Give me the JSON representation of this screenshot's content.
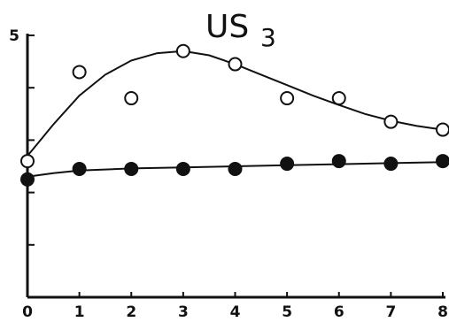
{
  "chart_data": {
    "type": "scatter",
    "title": "US",
    "title_subscript": "3",
    "x": [
      0,
      1,
      2,
      3,
      4,
      5,
      6,
      7,
      8
    ],
    "x_tick_labels": [
      "0",
      "1",
      "2",
      "3",
      "4",
      "5",
      "6",
      "7",
      "8"
    ],
    "xlim": [
      0,
      8
    ],
    "ylim": [
      0,
      5
    ],
    "y_tick_values": [
      1,
      2,
      3,
      4,
      5
    ],
    "y_tick_labels_shown": [
      "5"
    ],
    "grid": false,
    "series": [
      {
        "marker": "open-circle",
        "values": [
          2.6,
          4.3,
          3.8,
          4.7,
          4.45,
          3.8,
          3.8,
          3.35,
          3.2
        ],
        "fit_curve": [
          [
            0,
            2.7
          ],
          [
            0.5,
            3.3
          ],
          [
            1,
            3.85
          ],
          [
            1.5,
            4.25
          ],
          [
            2,
            4.52
          ],
          [
            2.5,
            4.66
          ],
          [
            3,
            4.7
          ],
          [
            3.5,
            4.62
          ],
          [
            4,
            4.45
          ],
          [
            4.5,
            4.25
          ],
          [
            5,
            4.05
          ],
          [
            5.5,
            3.85
          ],
          [
            6,
            3.67
          ],
          [
            6.5,
            3.5
          ],
          [
            7,
            3.37
          ],
          [
            7.5,
            3.27
          ],
          [
            8,
            3.2
          ]
        ]
      },
      {
        "marker": "filled-circle",
        "values": [
          2.25,
          2.45,
          2.45,
          2.45,
          2.45,
          2.55,
          2.6,
          2.55,
          2.6
        ],
        "fit_curve": [
          [
            0,
            2.3
          ],
          [
            0.5,
            2.37
          ],
          [
            1,
            2.42
          ],
          [
            2,
            2.46
          ],
          [
            3,
            2.48
          ],
          [
            4,
            2.5
          ],
          [
            5,
            2.52
          ],
          [
            6,
            2.54
          ],
          [
            7,
            2.56
          ],
          [
            8,
            2.58
          ]
        ]
      }
    ],
    "colors": {
      "ink": "#111111",
      "background": "#ffffff"
    }
  }
}
